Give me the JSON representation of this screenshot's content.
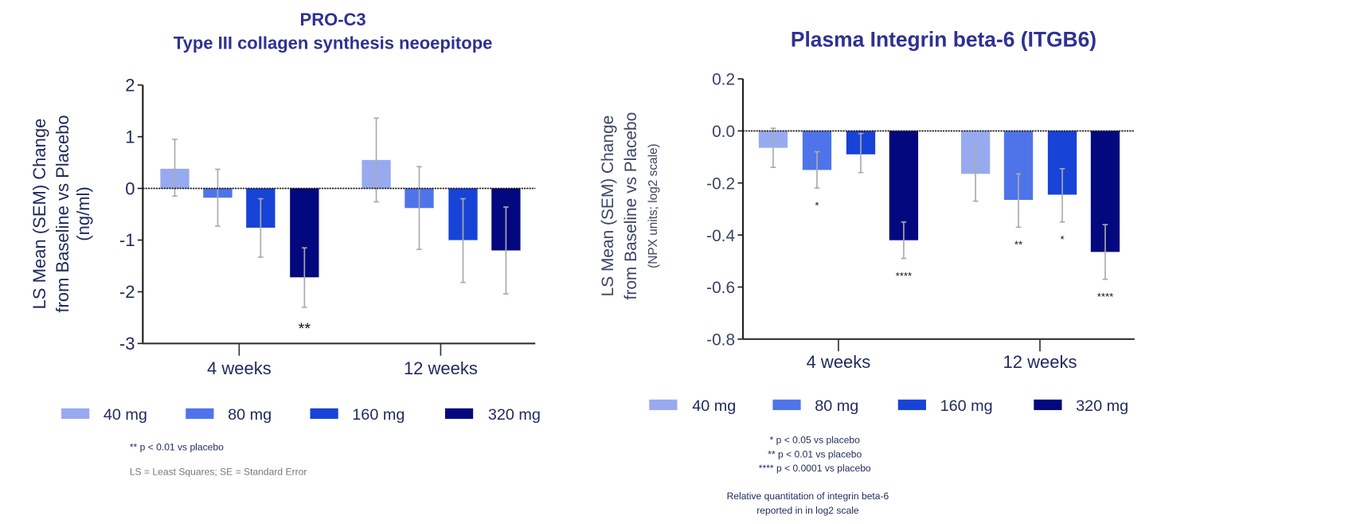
{
  "chart_data": [
    {
      "type": "bar",
      "title": [
        "PRO-C3",
        "Type III collagen synthesis neoepitope"
      ],
      "ylabel": [
        "LS Mean (SEM)  Change",
        "from  Baseline vs Placebo",
        "(ng/ml)"
      ],
      "xlabel": "",
      "categories": [
        "4 weeks",
        "12 weeks"
      ],
      "ylim": [
        -3,
        2
      ],
      "yticks": [
        "2",
        "1",
        "0",
        "-1",
        "-2",
        "-3"
      ],
      "ytick_values": [
        2,
        1,
        0,
        -1,
        -2,
        -3
      ],
      "grid": false,
      "legend_position": "bottom",
      "series": [
        {
          "name": "40 mg",
          "color": "#97aaf0",
          "values": [
            0.38,
            0.55
          ],
          "err_high": [
            0.95,
            1.36
          ],
          "err_low": [
            -0.15,
            -0.26
          ],
          "significance": [
            "",
            ""
          ]
        },
        {
          "name": "80 mg",
          "color": "#4f74ea",
          "values": [
            -0.18,
            -0.38
          ],
          "err_high": [
            0.37,
            0.42
          ],
          "err_low": [
            -0.73,
            -1.18
          ],
          "significance": [
            "",
            ""
          ]
        },
        {
          "name": "160 mg",
          "color": "#1743d6",
          "values": [
            -0.76,
            -1.0
          ],
          "err_high": [
            -0.2,
            -0.2
          ],
          "err_low": [
            -1.33,
            -1.82
          ],
          "significance": [
            "",
            ""
          ]
        },
        {
          "name": "320 mg",
          "color": "#03087e",
          "values": [
            -1.72,
            -1.2
          ],
          "err_high": [
            -1.15,
            -0.36
          ],
          "err_low": [
            -2.3,
            -2.04
          ],
          "significance": [
            "**",
            ""
          ]
        }
      ],
      "footnotes": [
        "** p < 0.01 vs placebo",
        "LS = Least Squares; SE = Standard Error"
      ]
    },
    {
      "type": "bar",
      "title": [
        "Plasma Integrin beta-6 (ITGB6)"
      ],
      "ylabel": [
        "LS Mean (SEM) Change",
        "from  Baseline vs Placebo",
        "(NPX units; log2 scale)"
      ],
      "xlabel": "",
      "categories": [
        "4 weeks",
        "12 weeks"
      ],
      "ylim": [
        -0.8,
        0.2
      ],
      "yticks": [
        "0.2",
        "0.0",
        "-0.2",
        "-0.4",
        "-0.6",
        "-0.8"
      ],
      "ytick_values": [
        0.2,
        0.0,
        -0.2,
        -0.4,
        -0.6,
        -0.8
      ],
      "grid": false,
      "legend_position": "bottom",
      "series": [
        {
          "name": "40 mg",
          "color": "#97aaf0",
          "values": [
            -0.065,
            -0.165
          ],
          "err_high": [
            0.01,
            -0.07
          ],
          "err_low": [
            -0.14,
            -0.27
          ],
          "significance": [
            "",
            ""
          ]
        },
        {
          "name": "80 mg",
          "color": "#4f74ea",
          "values": [
            -0.15,
            -0.265
          ],
          "err_high": [
            -0.08,
            -0.165
          ],
          "err_low": [
            -0.22,
            -0.37
          ],
          "significance": [
            "*",
            "**"
          ]
        },
        {
          "name": "160 mg",
          "color": "#1743d6",
          "values": [
            -0.09,
            -0.245
          ],
          "err_high": [
            -0.01,
            -0.145
          ],
          "err_low": [
            -0.16,
            -0.35
          ],
          "significance": [
            "",
            "*"
          ]
        },
        {
          "name": "320 mg",
          "color": "#03087e",
          "values": [
            -0.42,
            -0.465
          ],
          "err_high": [
            -0.35,
            -0.36
          ],
          "err_low": [
            -0.49,
            -0.57
          ],
          "significance": [
            "****",
            "****"
          ]
        }
      ],
      "footnotes": [
        "* p < 0.05 vs placebo",
        "** p < 0.01 vs placebo",
        "**** p < 0.0001 vs placebo",
        "Relative quantitation of integrin beta-6",
        "reported in in log2 scale"
      ]
    }
  ]
}
